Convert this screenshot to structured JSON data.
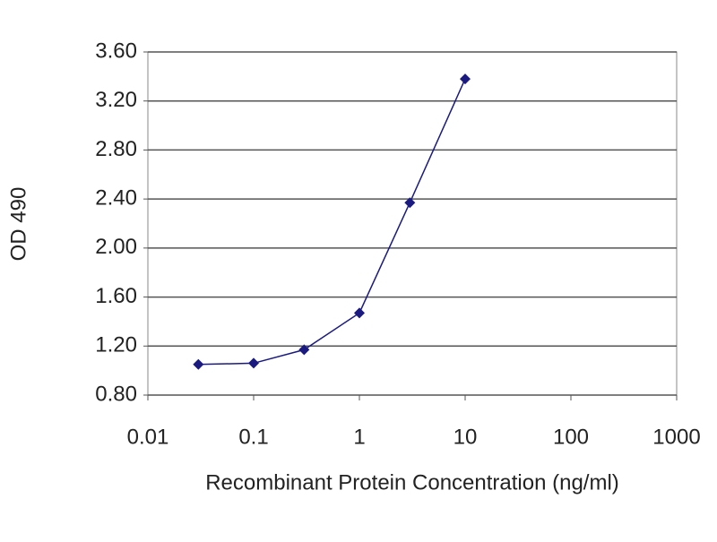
{
  "chart_data": {
    "type": "line",
    "x_label": "Recombinant Protein Concentration (ng/ml)",
    "y_label": "OD 490",
    "xscale": "log",
    "grid": true,
    "xlim": [
      0.01,
      1000
    ],
    "xticks": [
      0.01,
      0.1,
      1,
      10,
      100,
      1000
    ],
    "ylim": [
      0.8,
      3.6
    ],
    "yticks": [
      {
        "value": 0.8,
        "label": "0.80"
      },
      {
        "value": 1.2,
        "label": "1.20"
      },
      {
        "value": 1.6,
        "label": "1.60"
      },
      {
        "value": 2.0,
        "label": "2.00"
      },
      {
        "value": 2.4,
        "label": "2.40"
      },
      {
        "value": 2.8,
        "label": "2.80"
      },
      {
        "value": 3.2,
        "label": "3.20"
      },
      {
        "value": 3.6,
        "label": "3.60"
      }
    ],
    "x": [
      0.03,
      0.1,
      0.3,
      1,
      3,
      10
    ],
    "values": [
      1.05,
      1.06,
      1.17,
      1.47,
      2.37,
      3.38
    ],
    "color": "#1a1a80"
  }
}
